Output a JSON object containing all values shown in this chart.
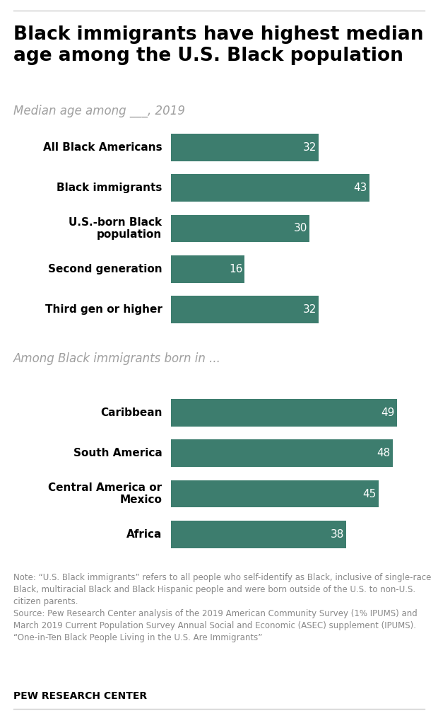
{
  "title": "Black immigrants have highest median\nage among the U.S. Black population",
  "subtitle1": "Median age among ___, 2019",
  "subtitle2": "Among Black immigrants born in ...",
  "bar_color": "#3d7d6e",
  "group1_labels": [
    "All Black Americans",
    "Black immigrants",
    "U.S.-born Black\npopulation",
    "Second generation",
    "Third gen or higher"
  ],
  "group1_values": [
    32,
    43,
    30,
    16,
    32
  ],
  "group2_labels": [
    "Caribbean",
    "South America",
    "Central America or\nMexico",
    "Africa"
  ],
  "group2_values": [
    49,
    48,
    45,
    38
  ],
  "note_text": "Note: “U.S. Black immigrants” refers to all people who self-identify as Black, inclusive of single-race Black, multiracial Black and Black Hispanic people and were born outside of the U.S. to non-U.S. citizen parents.\nSource: Pew Research Center analysis of the 2019 American Community Survey (1% IPUMS) and March 2019 Current Population Survey Annual Social and Economic (ASEC) supplement (IPUMS). “One-in-Ten Black People Living in the U.S. Are Immigrants”",
  "source_label": "PEW RESEARCH CENTER",
  "bg_color": "#ffffff",
  "text_color": "#000000",
  "subtitle_color": "#a0a0a0",
  "note_color": "#888888",
  "value_label_color": "#ffffff",
  "xlim": [
    0,
    55
  ]
}
